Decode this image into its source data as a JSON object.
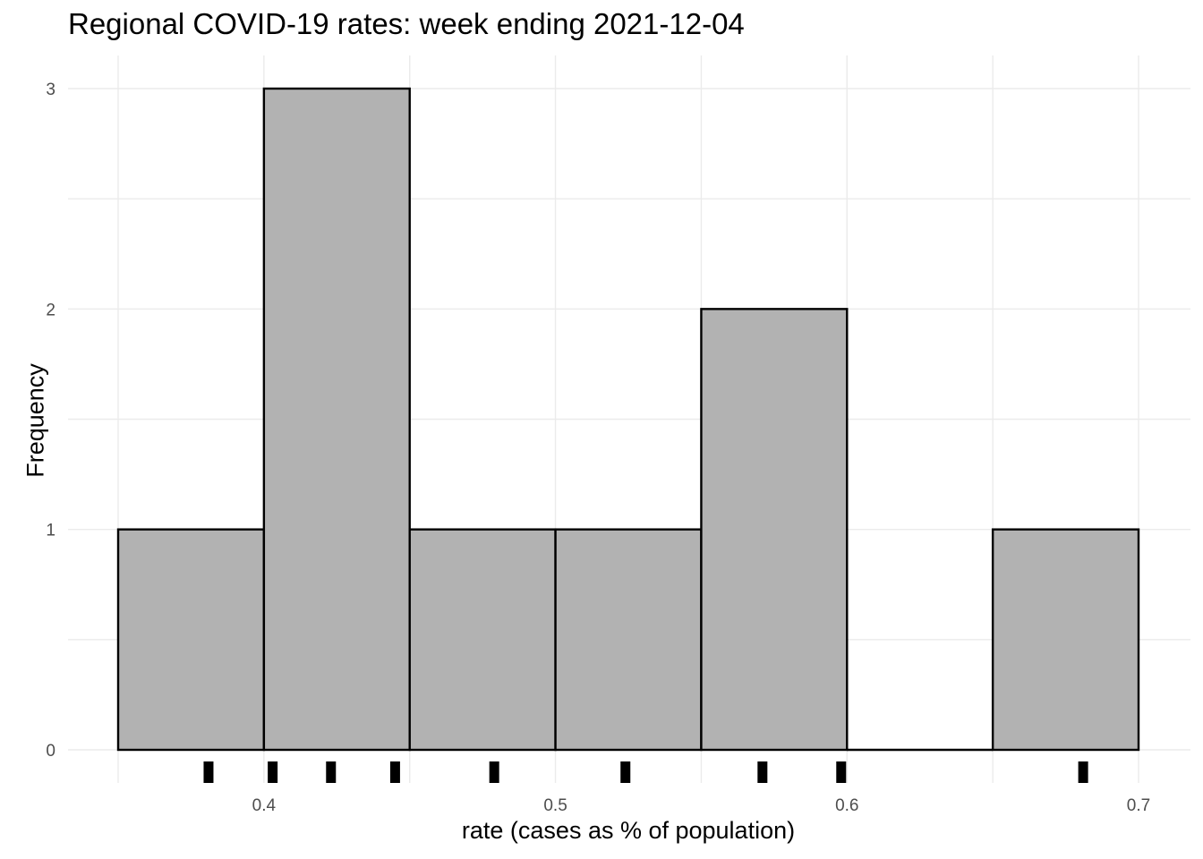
{
  "chart_data": {
    "type": "bar",
    "title": "Regional COVID-19 rates: week ending 2021-12-04",
    "xlabel": "rate (cases as % of population)",
    "ylabel": "Frequency",
    "bins": [
      {
        "x0": 0.35,
        "x1": 0.4,
        "count": 1
      },
      {
        "x0": 0.4,
        "x1": 0.45,
        "count": 3
      },
      {
        "x0": 0.45,
        "x1": 0.5,
        "count": 1
      },
      {
        "x0": 0.5,
        "x1": 0.55,
        "count": 1
      },
      {
        "x0": 0.55,
        "x1": 0.6,
        "count": 2
      },
      {
        "x0": 0.6,
        "x1": 0.65,
        "count": 0
      },
      {
        "x0": 0.65,
        "x1": 0.7,
        "count": 1
      }
    ],
    "rug": [
      0.381,
      0.403,
      0.423,
      0.445,
      0.479,
      0.524,
      0.571,
      0.598,
      0.681
    ],
    "xlim": [
      0.35,
      0.7
    ],
    "ylim": [
      0,
      3
    ],
    "x_ticks": [
      0.4,
      0.5,
      0.6,
      0.7
    ],
    "x_tick_labels": [
      "0.4",
      "0.5",
      "0.6",
      "0.7"
    ],
    "y_ticks": [
      0,
      1,
      2,
      3
    ],
    "y_tick_labels": [
      "0",
      "1",
      "2",
      "3"
    ],
    "grid": true,
    "legend": "none",
    "bar_fill": "#b2b2b2",
    "bar_stroke": "#000000",
    "grid_color": "#ebebeb"
  }
}
